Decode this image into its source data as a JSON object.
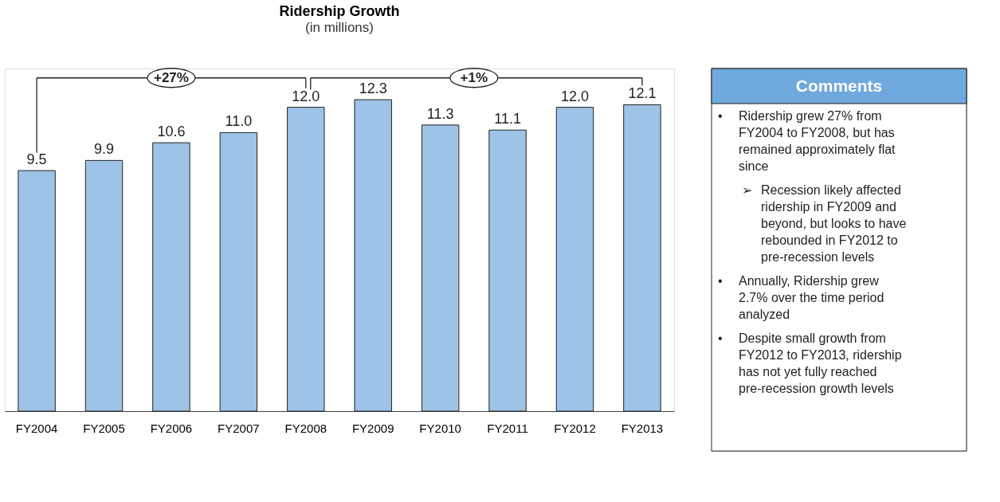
{
  "chart_data": {
    "type": "bar",
    "title": "Ridership Growth",
    "subtitle": "(in millions)",
    "categories": [
      "FY2004",
      "FY2005",
      "FY2006",
      "FY2007",
      "FY2008",
      "FY2009",
      "FY2010",
      "FY2011",
      "FY2012",
      "FY2013"
    ],
    "values": [
      9.5,
      9.9,
      10.6,
      11.0,
      12.0,
      12.3,
      11.3,
      11.1,
      12.0,
      12.1
    ],
    "value_labels": [
      "9.5",
      "9.9",
      "10.6",
      "11.0",
      "12.0",
      "12.3",
      "11.3",
      "11.1",
      "12.0",
      "12.1"
    ],
    "color": "#9dc3e6",
    "annotations": [
      "+27%",
      "+1%",
      "Comments",
      "• Ridership grew 27% from FY2004 to FY2008, but has remained approximately flat since",
      "➢ Recession likely affected ridership in FY2009 and beyond, but looks to have rebounded in FY2012 to pre-recession levels",
      "• Annually,  Ridership grew 2.7% over the time period analyzed",
      "• Despite small growth from FY2012 to FY2013, ridership has not yet fully reached pre-recession growth levels"
    ]
  }
}
